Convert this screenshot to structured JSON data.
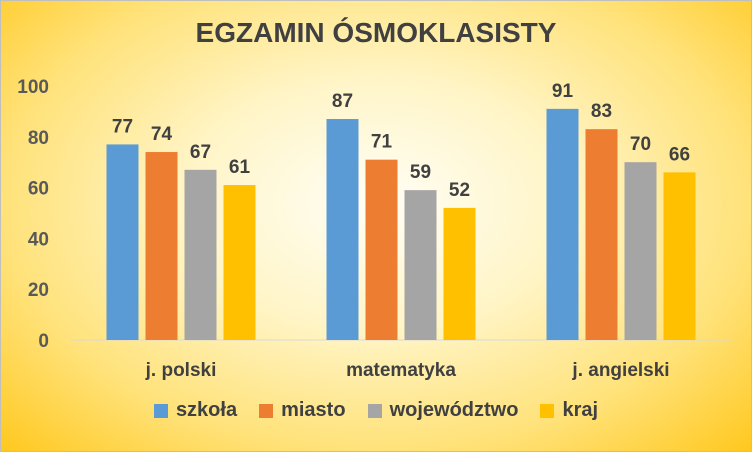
{
  "chart_data": {
    "type": "bar",
    "title": "EGZAMIN ÓSMOKLASISTY",
    "xlabel": "",
    "ylabel": "",
    "categories": [
      "j. polski",
      "matematyka",
      "j. angielski"
    ],
    "series": [
      {
        "name": "szkoła",
        "color": "#5b9bd5",
        "values": [
          77,
          87,
          91
        ]
      },
      {
        "name": "miasto",
        "color": "#ed7d31",
        "values": [
          74,
          71,
          83
        ]
      },
      {
        "name": "województwo",
        "color": "#a5a5a5",
        "values": [
          67,
          59,
          70
        ]
      },
      {
        "name": "kraj",
        "color": "#ffc000",
        "values": [
          61,
          52,
          66
        ]
      }
    ],
    "ylim": [
      0,
      100
    ],
    "yticks": [
      "0",
      "20",
      "40",
      "60",
      "80",
      "100"
    ],
    "grid": false,
    "legend_position": "bottom",
    "data_labels": true
  }
}
